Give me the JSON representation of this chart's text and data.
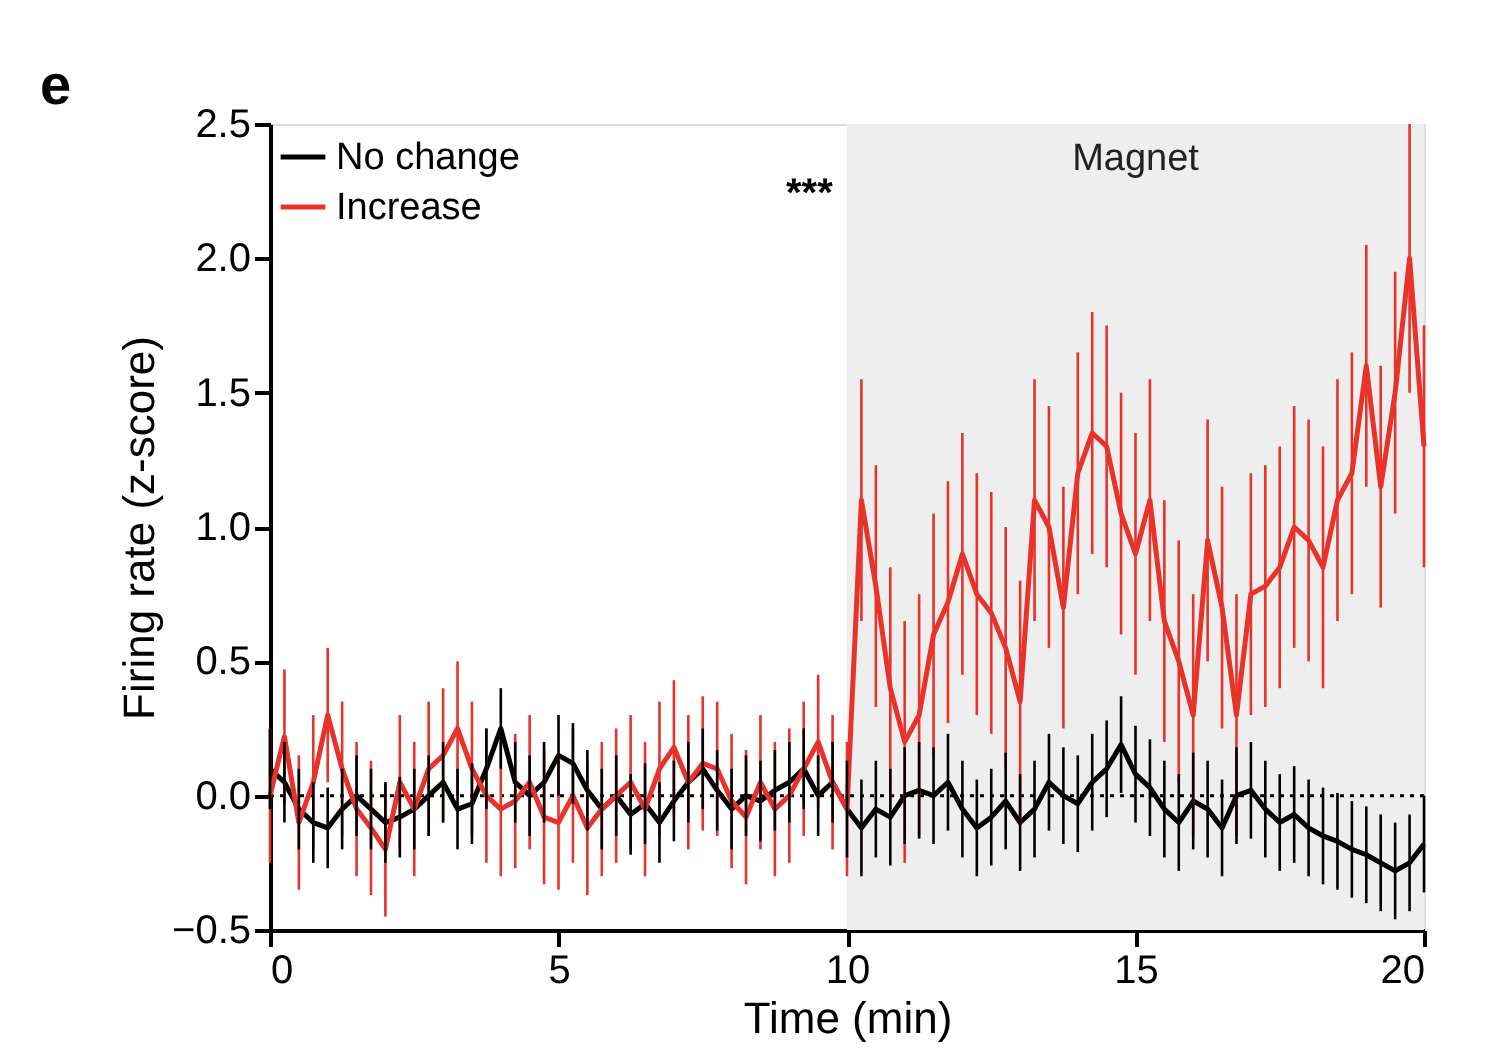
{
  "chart_data": {
    "type": "line",
    "xlabel": "Time (min)",
    "ylabel": "Firing rate (z-score)",
    "x": [
      0,
      0.25,
      0.5,
      0.75,
      1,
      1.25,
      1.5,
      1.75,
      2,
      2.25,
      2.5,
      2.75,
      3,
      3.25,
      3.5,
      3.75,
      4,
      4.25,
      4.5,
      4.75,
      5,
      5.25,
      5.5,
      5.75,
      6,
      6.25,
      6.5,
      6.75,
      7,
      7.25,
      7.5,
      7.75,
      8,
      8.25,
      8.5,
      8.75,
      9,
      9.25,
      9.5,
      9.75,
      10,
      10.25,
      10.5,
      10.75,
      11,
      11.25,
      11.5,
      11.75,
      12,
      12.25,
      12.5,
      12.75,
      13,
      13.25,
      13.5,
      13.75,
      14,
      14.25,
      14.5,
      14.75,
      15,
      15.25,
      15.5,
      15.75,
      16,
      16.25,
      16.5,
      16.75,
      17,
      17.25,
      17.5,
      17.75,
      18,
      18.25,
      18.5,
      18.75,
      19,
      19.25,
      19.5,
      19.75,
      20
    ],
    "series": [
      {
        "name": "No change",
        "color": "#000000",
        "values": [
          0.1,
          0.05,
          -0.05,
          -0.1,
          -0.12,
          -0.05,
          0.0,
          -0.05,
          -0.1,
          -0.08,
          -0.05,
          0.0,
          0.05,
          -0.05,
          -0.03,
          0.1,
          0.25,
          0.05,
          0.0,
          0.05,
          0.15,
          0.12,
          0.02,
          -0.05,
          0.0,
          -0.07,
          -0.03,
          -0.1,
          -0.02,
          0.05,
          0.1,
          0.02,
          -0.05,
          0.0,
          -0.02,
          0.02,
          0.05,
          0.1,
          0.0,
          0.05,
          -0.05,
          -0.12,
          -0.05,
          -0.08,
          0.0,
          0.02,
          0.0,
          0.05,
          -0.05,
          -0.12,
          -0.08,
          -0.02,
          -0.1,
          -0.05,
          0.05,
          0.0,
          -0.03,
          0.05,
          0.1,
          0.19,
          0.08,
          0.03,
          -0.05,
          -0.1,
          -0.02,
          -0.05,
          -0.12,
          0.0,
          0.02,
          -0.05,
          -0.1,
          -0.07,
          -0.12,
          -0.15,
          -0.17,
          -0.2,
          -0.22,
          -0.25,
          -0.28,
          -0.25,
          -0.18
        ],
        "errors": [
          0.15,
          0.15,
          0.15,
          0.15,
          0.15,
          0.15,
          0.15,
          0.15,
          0.15,
          0.15,
          0.15,
          0.15,
          0.15,
          0.15,
          0.15,
          0.15,
          0.15,
          0.15,
          0.15,
          0.15,
          0.15,
          0.15,
          0.15,
          0.15,
          0.15,
          0.15,
          0.15,
          0.15,
          0.15,
          0.15,
          0.15,
          0.15,
          0.15,
          0.15,
          0.15,
          0.15,
          0.15,
          0.15,
          0.15,
          0.15,
          0.18,
          0.18,
          0.18,
          0.18,
          0.18,
          0.18,
          0.18,
          0.18,
          0.18,
          0.18,
          0.18,
          0.18,
          0.18,
          0.18,
          0.18,
          0.18,
          0.18,
          0.18,
          0.18,
          0.18,
          0.18,
          0.18,
          0.18,
          0.18,
          0.18,
          0.18,
          0.18,
          0.18,
          0.18,
          0.18,
          0.18,
          0.18,
          0.18,
          0.18,
          0.18,
          0.18,
          0.18,
          0.18,
          0.18,
          0.18,
          0.18
        ]
      },
      {
        "name": "Increase",
        "color": "#e8322a",
        "values": [
          0.0,
          0.22,
          -0.1,
          0.05,
          0.3,
          0.1,
          -0.05,
          -0.12,
          -0.2,
          0.05,
          -0.05,
          0.1,
          0.15,
          0.25,
          0.1,
          0.0,
          -0.05,
          -0.02,
          0.05,
          -0.08,
          -0.1,
          0.0,
          -0.12,
          -0.05,
          0.0,
          0.05,
          -0.05,
          0.1,
          0.18,
          0.05,
          0.12,
          0.1,
          -0.02,
          -0.08,
          0.05,
          -0.05,
          0.0,
          0.1,
          0.2,
          0.05,
          -0.05,
          1.1,
          0.78,
          0.4,
          0.2,
          0.3,
          0.6,
          0.72,
          0.9,
          0.75,
          0.68,
          0.55,
          0.35,
          1.1,
          1.0,
          0.7,
          1.2,
          1.35,
          1.3,
          1.05,
          0.9,
          1.1,
          0.65,
          0.5,
          0.3,
          0.95,
          0.7,
          0.3,
          0.75,
          0.78,
          0.85,
          1.0,
          0.95,
          0.85,
          1.1,
          1.2,
          1.6,
          1.15,
          1.5,
          2.0,
          1.3
        ],
        "errors": [
          0.25,
          0.25,
          0.25,
          0.25,
          0.25,
          0.25,
          0.25,
          0.25,
          0.25,
          0.25,
          0.25,
          0.25,
          0.25,
          0.25,
          0.25,
          0.25,
          0.25,
          0.25,
          0.25,
          0.25,
          0.25,
          0.25,
          0.25,
          0.25,
          0.25,
          0.25,
          0.25,
          0.25,
          0.25,
          0.25,
          0.25,
          0.25,
          0.25,
          0.25,
          0.25,
          0.25,
          0.25,
          0.25,
          0.25,
          0.25,
          0.25,
          0.45,
          0.45,
          0.45,
          0.45,
          0.45,
          0.45,
          0.45,
          0.45,
          0.45,
          0.45,
          0.45,
          0.45,
          0.45,
          0.45,
          0.45,
          0.45,
          0.45,
          0.45,
          0.45,
          0.45,
          0.45,
          0.45,
          0.45,
          0.45,
          0.45,
          0.45,
          0.45,
          0.45,
          0.45,
          0.45,
          0.45,
          0.45,
          0.45,
          0.45,
          0.45,
          0.45,
          0.45,
          0.45,
          0.5,
          0.45
        ]
      }
    ],
    "xlim": [
      0,
      20
    ],
    "xticks": [
      0,
      5,
      10,
      15,
      20
    ],
    "ylim": [
      -0.5,
      2.5
    ],
    "yticks": [
      {
        "value": -0.5,
        "label": "−0.5"
      },
      {
        "value": 0,
        "label": "0.0"
      },
      0.5,
      {
        "value": 1,
        "label": "1.0"
      },
      1.5,
      {
        "value": 2,
        "label": "2.0"
      },
      2.5
    ],
    "bands": [
      {
        "axis": "x",
        "from": 10,
        "to": 20,
        "label": "Magnet",
        "color": "#eeeeee"
      }
    ],
    "ref_lines": [
      {
        "axis": "y",
        "value": 0,
        "line_style": "dotted",
        "color": "#000000"
      }
    ],
    "annotations": [
      "e",
      "***"
    ],
    "legend": "top left",
    "grid": false,
    "marker": "none",
    "line_style": "solid"
  }
}
